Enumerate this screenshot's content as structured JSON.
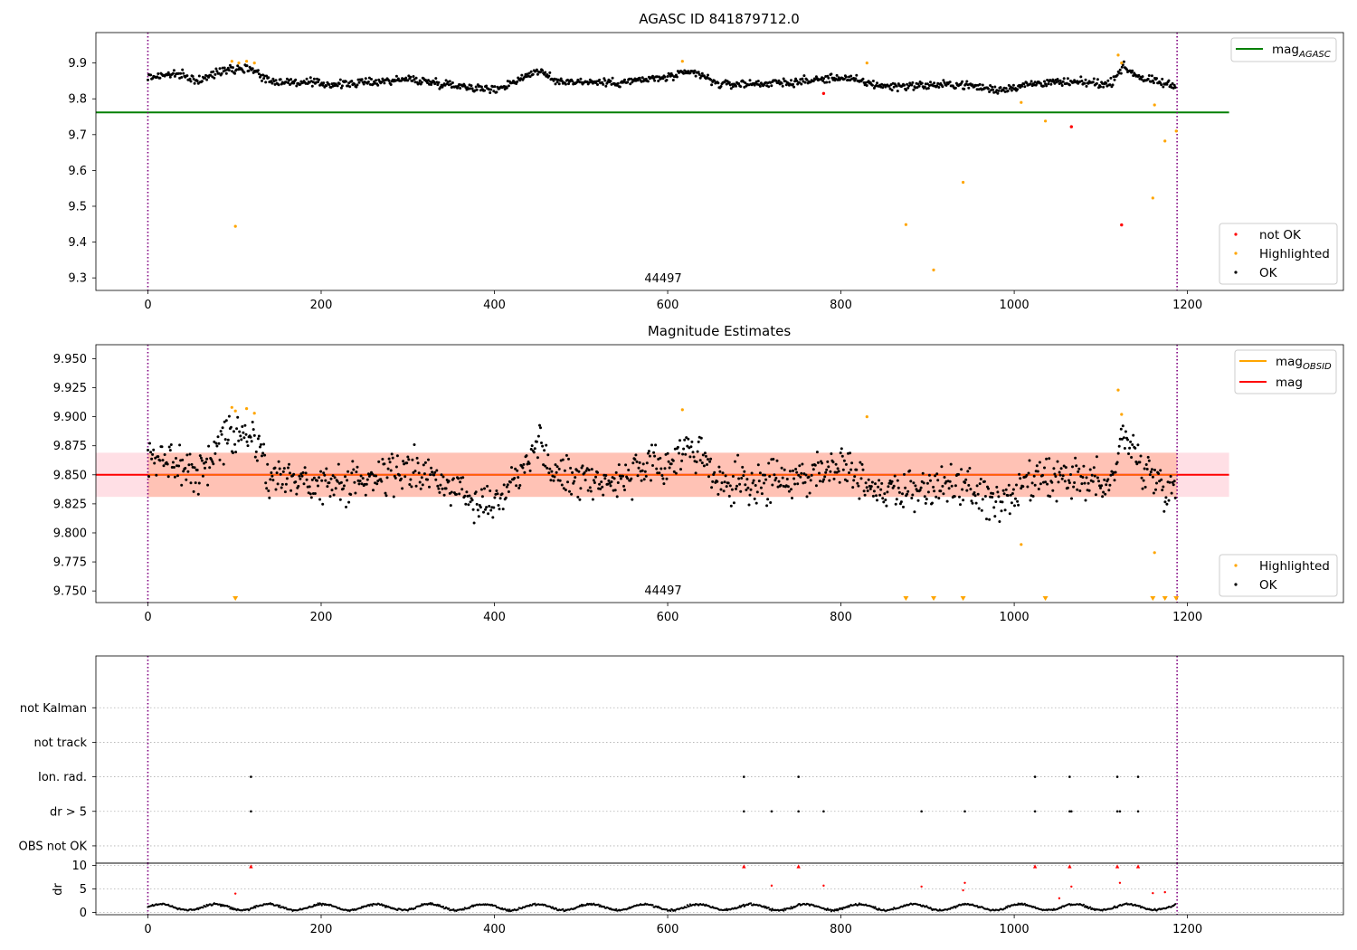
{
  "chart_data": [
    {
      "type": "scatter",
      "title": "AGASC ID 841879712.0",
      "xlabel": "",
      "ylabel": "",
      "xlim": [
        -60,
        1380
      ],
      "ylim": [
        9.265,
        9.985
      ],
      "xticks": [
        0,
        200,
        400,
        600,
        800,
        1000,
        1200
      ],
      "yticks": [
        9.3,
        9.4,
        9.5,
        9.6,
        9.7,
        9.8,
        9.9
      ],
      "ytick_labels": [
        "9.3",
        "9.4",
        "9.5",
        "9.6",
        "9.7",
        "9.8",
        "9.9"
      ],
      "vlines": [
        0,
        1188
      ],
      "obsid_label": {
        "text": "44497",
        "x": 594
      },
      "hlines": [
        {
          "name": "mag_AGASC",
          "y": 9.762,
          "x_range": [
            -60,
            1248
          ],
          "color": "#008000"
        }
      ],
      "lines_legend": {
        "label": "mag",
        "subscript": "AGASC",
        "color": "#008000",
        "location": "upper right"
      },
      "scatter_legend": {
        "location": "lower right",
        "entries": [
          {
            "label": "not OK",
            "color": "#ff0000"
          },
          {
            "label": "Highlighted",
            "color": "#ffa500"
          },
          {
            "label": "OK",
            "color": "#000000"
          }
        ]
      },
      "series": {
        "not_ok": {
          "color": "#ff0000",
          "points": [
            [
              780,
              9.815
            ],
            [
              1066,
              9.722
            ],
            [
              1124,
              9.448
            ]
          ]
        },
        "highlighted": {
          "color": "#ffa500",
          "points": [
            [
              97,
              9.905
            ],
            [
              101,
              9.444
            ],
            [
              105,
              9.9
            ],
            [
              114,
              9.905
            ],
            [
              123,
              9.9
            ],
            [
              617,
              9.905
            ],
            [
              830,
              9.9
            ],
            [
              875,
              9.449
            ],
            [
              907,
              9.322
            ],
            [
              941,
              9.567
            ],
            [
              1008,
              9.79
            ],
            [
              1036,
              9.738
            ],
            [
              1120,
              9.922
            ],
            [
              1124,
              9.9
            ],
            [
              1160,
              9.523
            ],
            [
              1162,
              9.783
            ],
            [
              1174,
              9.682
            ],
            [
              1187,
              9.71
            ]
          ]
        },
        "ok": {
          "color": "#000000",
          "n": 1100,
          "x_range": [
            0,
            1186
          ],
          "mean": 9.85,
          "noise": 0.008,
          "trend": [
            [
              0,
              9.86
            ],
            [
              30,
              9.87
            ],
            [
              60,
              9.85
            ],
            [
              90,
              9.885
            ],
            [
              120,
              9.885
            ],
            [
              140,
              9.85
            ],
            [
              220,
              9.84
            ],
            [
              300,
              9.855
            ],
            [
              350,
              9.84
            ],
            [
              400,
              9.825
            ],
            [
              420,
              9.845
            ],
            [
              450,
              9.88
            ],
            [
              470,
              9.85
            ],
            [
              540,
              9.845
            ],
            [
              600,
              9.86
            ],
            [
              630,
              9.875
            ],
            [
              660,
              9.84
            ],
            [
              740,
              9.845
            ],
            [
              800,
              9.86
            ],
            [
              850,
              9.835
            ],
            [
              940,
              9.84
            ],
            [
              980,
              9.825
            ],
            [
              1030,
              9.845
            ],
            [
              1090,
              9.845
            ],
            [
              1110,
              9.84
            ],
            [
              1125,
              9.89
            ],
            [
              1150,
              9.855
            ],
            [
              1186,
              9.835
            ]
          ]
        }
      }
    },
    {
      "type": "scatter",
      "title": "Magnitude Estimates",
      "xlim": [
        -60,
        1380
      ],
      "ylim": [
        9.74,
        9.962
      ],
      "xticks": [
        0,
        200,
        400,
        600,
        800,
        1000,
        1200
      ],
      "yticks": [
        9.75,
        9.775,
        9.8,
        9.825,
        9.85,
        9.875,
        9.9,
        9.925,
        9.95
      ],
      "ytick_labels": [
        "9.750",
        "9.775",
        "9.800",
        "9.825",
        "9.850",
        "9.875",
        "9.900",
        "9.925",
        "9.950"
      ],
      "vlines": [
        0,
        1188
      ],
      "obsid_label": {
        "text": "44497",
        "x": 594
      },
      "mag_line": {
        "y": 9.85,
        "x_range": [
          -60,
          1248
        ],
        "color": "#ff0000"
      },
      "mag_band": {
        "y_range": [
          9.831,
          9.869
        ],
        "x_range": [
          -60,
          1248
        ],
        "color": "#ffc0cb"
      },
      "obsid_band": {
        "y_range": [
          9.831,
          9.869
        ],
        "x_range": [
          0,
          1188
        ],
        "color": "#ffa07a"
      },
      "lines_legend": {
        "location": "upper right",
        "entries": [
          {
            "label": "mag",
            "subscript": "OBSID",
            "color": "#ffa500"
          },
          {
            "label": "mag",
            "subscript": "",
            "color": "#ff0000"
          }
        ]
      },
      "scatter_legend": {
        "location": "lower right",
        "entries": [
          {
            "label": "Highlighted",
            "color": "#ffa500"
          },
          {
            "label": "OK",
            "color": "#000000"
          }
        ]
      },
      "out_of_range_markers": [
        101,
        875,
        907,
        941,
        1036,
        1160,
        1174,
        1187
      ],
      "series": {
        "highlighted": {
          "color": "#ffa500",
          "points": [
            [
              97,
              9.908
            ],
            [
              101,
              9.905
            ],
            [
              114,
              9.907
            ],
            [
              123,
              9.903
            ],
            [
              617,
              9.906
            ],
            [
              830,
              9.9
            ],
            [
              1008,
              9.79
            ],
            [
              1120,
              9.923
            ],
            [
              1124,
              9.902
            ],
            [
              1162,
              9.783
            ]
          ]
        },
        "ok": {
          "color": "#000000",
          "n": 1100,
          "x_range": [
            0,
            1186
          ],
          "mean": 9.85,
          "noise": 0.012,
          "trend": [
            [
              0,
              9.86
            ],
            [
              30,
              9.865
            ],
            [
              60,
              9.85
            ],
            [
              90,
              9.885
            ],
            [
              120,
              9.885
            ],
            [
              140,
              9.85
            ],
            [
              220,
              9.84
            ],
            [
              300,
              9.855
            ],
            [
              350,
              9.84
            ],
            [
              400,
              9.825
            ],
            [
              420,
              9.845
            ],
            [
              450,
              9.88
            ],
            [
              470,
              9.85
            ],
            [
              540,
              9.845
            ],
            [
              600,
              9.86
            ],
            [
              630,
              9.875
            ],
            [
              660,
              9.84
            ],
            [
              740,
              9.845
            ],
            [
              800,
              9.86
            ],
            [
              850,
              9.835
            ],
            [
              940,
              9.84
            ],
            [
              980,
              9.825
            ],
            [
              1030,
              9.845
            ],
            [
              1090,
              9.845
            ],
            [
              1110,
              9.84
            ],
            [
              1125,
              9.885
            ],
            [
              1150,
              9.855
            ],
            [
              1186,
              9.835
            ]
          ]
        }
      }
    },
    {
      "type": "scatter",
      "title": "",
      "xlim": [
        -60,
        1380
      ],
      "ylim": [
        -0.5,
        5.5
      ],
      "vlines": [
        0,
        1188
      ],
      "categories": [
        "OBS not OK",
        "dr > 5",
        "Ion. rad.",
        "not track",
        "not Kalman"
      ],
      "points": {
        "dr > 5": [
          119,
          688,
          720,
          751,
          780,
          893,
          943,
          1024,
          1064,
          1066,
          1119,
          1122,
          1143
        ],
        "Ion. rad.": [
          119,
          688,
          751,
          1024,
          1064,
          1119,
          1143
        ]
      }
    },
    {
      "type": "scatter",
      "title": "",
      "xlim": [
        -60,
        1380
      ],
      "ylim": [
        -0.5,
        10.5
      ],
      "xticks": [
        0,
        200,
        400,
        600,
        800,
        1000,
        1200
      ],
      "yticks": [
        0,
        5,
        10
      ],
      "ytick_labels": [
        "0",
        "5",
        "10"
      ],
      "ylabel": "dr",
      "vlines": [
        0,
        1188
      ],
      "series": {
        "red": {
          "color": "#ff0000",
          "points": [
            [
              101,
              4
            ],
            [
              119,
              9.8
            ],
            [
              688,
              9.8
            ],
            [
              720,
              5.7
            ],
            [
              751,
              9.8
            ],
            [
              780,
              5.7
            ],
            [
              893,
              5.5
            ],
            [
              941,
              4.7
            ],
            [
              943,
              6.3
            ],
            [
              1024,
              9.8
            ],
            [
              1052,
              3
            ],
            [
              1064,
              9.8
            ],
            [
              1066,
              5.5
            ],
            [
              1119,
              9.8
            ],
            [
              1122,
              6.3
            ],
            [
              1143,
              9.8
            ],
            [
              1160,
              4.1
            ],
            [
              1174,
              4.3
            ]
          ]
        },
        "ok": {
          "color": "#000000",
          "n": 1100,
          "x_range": [
            0,
            1186
          ],
          "mean": 1.1,
          "amp": 0.7,
          "noise": 0.15
        }
      }
    }
  ]
}
